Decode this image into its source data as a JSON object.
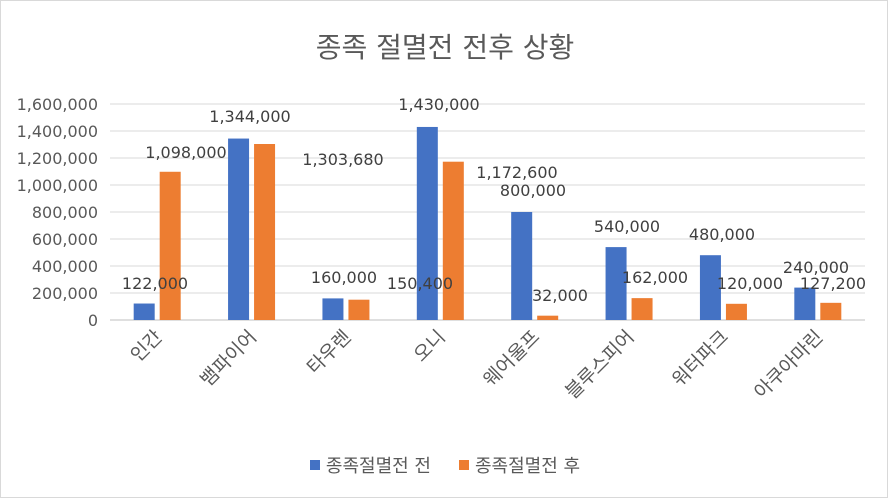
{
  "chart_data": {
    "type": "bar",
    "title": "종족 절멸전 전후 상황",
    "categories": [
      "인간",
      "뱀파이어",
      "타우렌",
      "오니",
      "웨어울프",
      "블루스피어",
      "워터파크",
      "아쿠아마린"
    ],
    "series": [
      {
        "name": "종족절멸전 전",
        "color": "#4472c4",
        "values": [
          122000,
          1344000,
          160000,
          1430000,
          800000,
          540000,
          480000,
          240000
        ],
        "labels": [
          "122,000",
          "1,344,000",
          "160,000",
          "1,430,000",
          "800,000",
          "540,000",
          "480,000",
          "240,000"
        ]
      },
      {
        "name": "종족절멸전 후",
        "color": "#ed7d31",
        "values": [
          1098000,
          1303680,
          150400,
          1172600,
          32000,
          162000,
          120000,
          127200
        ],
        "labels": [
          "1,098,000",
          "1,303,680",
          "150,400",
          "1,172,600",
          "32,000",
          "162,000",
          "120,000",
          "127,200"
        ]
      }
    ],
    "ylim": [
      0,
      1600000
    ],
    "yticks": [
      0,
      200000,
      400000,
      600000,
      800000,
      1000000,
      1200000,
      1400000,
      1600000
    ],
    "ytick_labels": [
      "0",
      "200,000",
      "400,000",
      "600,000",
      "800,000",
      "1,000,000",
      "1,200,000",
      "1,400,000",
      "1,600,000"
    ],
    "grid": true,
    "legend_position": "bottom"
  }
}
